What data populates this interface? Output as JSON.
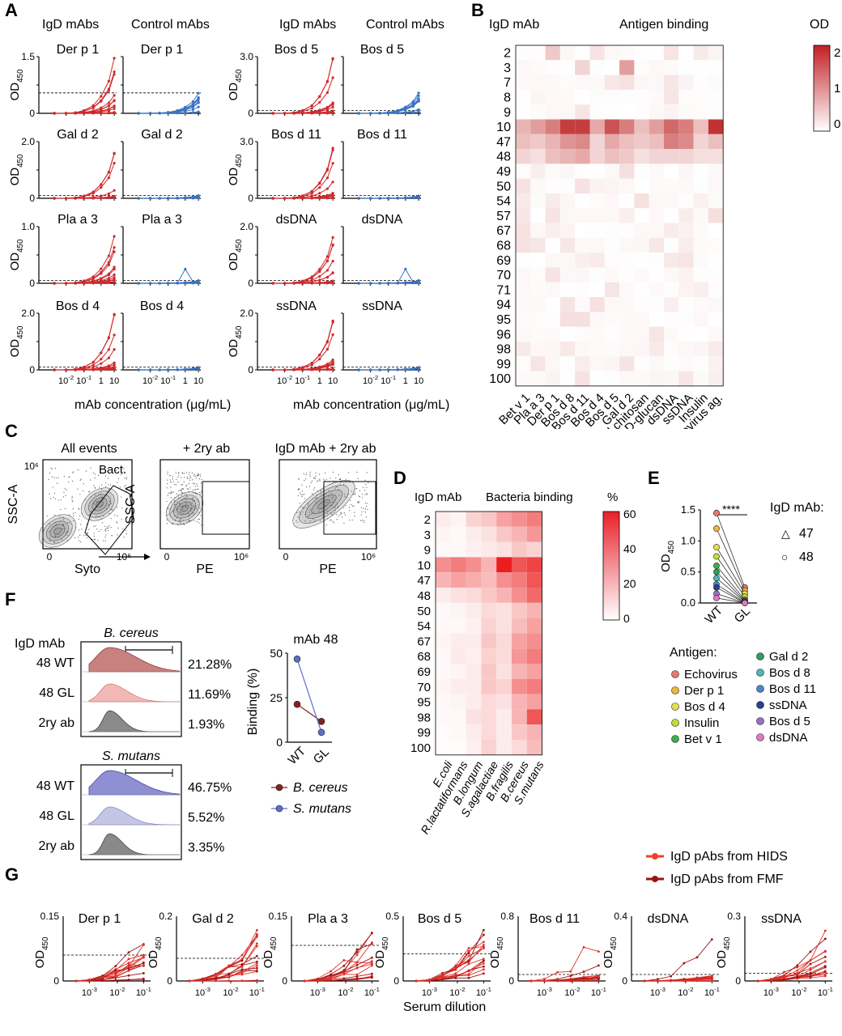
{
  "panels": {
    "A": {
      "label": "A",
      "col_headers": [
        "IgD mAbs",
        "Control mAbs",
        "IgD mAbs",
        "Control mAbs"
      ],
      "xlabel": "mAb concentration (μg/mL)",
      "ylabel_main": "OD",
      "ylabel_sub": "450",
      "xticks": [
        "10-2",
        "10-1",
        "1",
        "10"
      ],
      "rows_left": [
        {
          "title": "Der p 1",
          "ymax": "1.5",
          "ymin": "0"
        },
        {
          "title": "Gal d 2",
          "ymax": "2.0",
          "ymin": "0"
        },
        {
          "title": "Pla a 3",
          "ymax": "1.0",
          "ymin": "0"
        },
        {
          "title": "Bos d 4",
          "ymax": "2.0",
          "ymin": "0"
        }
      ],
      "rows_right": [
        {
          "title": "Bos d 5",
          "ymax": "3.0",
          "ymin": "0"
        },
        {
          "title": "Bos d 11",
          "ymax": "3.0",
          "ymin": "0"
        },
        {
          "title": "dsDNA",
          "ymax": "2.0",
          "ymin": "0"
        },
        {
          "title": "ssDNA",
          "ymax": "2.0",
          "ymin": "0"
        }
      ]
    },
    "B": {
      "label": "B",
      "row_header": "IgD mAb",
      "title": "Antigen binding",
      "scale_title": "OD",
      "scale_ticks": [
        "2",
        "1",
        "0"
      ],
      "rows": [
        "2",
        "3",
        "7",
        "8",
        "9",
        "10",
        "47",
        "48",
        "49",
        "50",
        "54",
        "57",
        "67",
        "68",
        "69",
        "70",
        "71",
        "94",
        "95",
        "96",
        "98",
        "99",
        "100"
      ],
      "cols": [
        "Bet v 1",
        "Pla a 3",
        "Der p 1",
        "Bos d 8",
        "Bos d 11",
        "Bos d 4",
        "Bos d 5",
        "Gal d 2",
        "Fungal chitosan",
        "β-D-glucan",
        "dsDNA",
        "ssDNA",
        "Insulin",
        "Echovirus ag."
      ]
    },
    "C": {
      "label": "C",
      "plots": [
        {
          "title": "All events",
          "ylabel": "SSC-A",
          "xlabel": "Syto",
          "gate": "Bact."
        },
        {
          "title": "+ 2ry ab",
          "ylabel": "SSC-A",
          "xlabel": "PE"
        },
        {
          "title": "IgD mAb + 2ry ab",
          "xlabel": "PE"
        }
      ],
      "tick_max": "10⁶",
      "tick_zero": "0"
    },
    "D": {
      "label": "D",
      "row_header": "IgD mAb",
      "title": "Bacteria binding",
      "scale_title": "%",
      "scale_ticks": [
        "60",
        "40",
        "20",
        "0"
      ],
      "rows": [
        "2",
        "3",
        "9",
        "10",
        "47",
        "48",
        "50",
        "54",
        "67",
        "68",
        "69",
        "70",
        "95",
        "98",
        "99",
        "100"
      ],
      "cols": [
        "E.coli",
        "R.lactatiformans",
        "B.longum",
        "S.agalactiae",
        "B.fragilis",
        "B.cereus",
        "S.mutans"
      ]
    },
    "E": {
      "label": "E",
      "ylabel_main": "OD",
      "ylabel_sub": "450",
      "yticks": [
        "1.5",
        "1.0",
        "0.5",
        "0.0"
      ],
      "xticks": [
        "WT",
        "GL"
      ],
      "significance": "****",
      "legend_title": "IgD mAb:",
      "legend_shapes": [
        {
          "symbol": "△",
          "label": "47"
        },
        {
          "symbol": "○",
          "label": "48"
        }
      ],
      "antigen_title": "Antigen:",
      "antigens_left": [
        {
          "name": "Echovirus",
          "color": "#e8786a"
        },
        {
          "name": "Der p 1",
          "color": "#f2b43c"
        },
        {
          "name": "Bos d 4",
          "color": "#e8e04a"
        },
        {
          "name": "Insulin",
          "color": "#c9d93a"
        },
        {
          "name": "Bet v 1",
          "color": "#3cae4a"
        }
      ],
      "antigens_right": [
        {
          "name": "Gal d 2",
          "color": "#2f9e5a"
        },
        {
          "name": "Bos d 8",
          "color": "#4fb7b0"
        },
        {
          "name": "Bos d 11",
          "color": "#4a86c8"
        },
        {
          "name": "ssDNA",
          "color": "#2a3f8f"
        },
        {
          "name": "Bos d 5",
          "color": "#9a6fc4"
        },
        {
          "name": "dsDNA",
          "color": "#e07ac0"
        }
      ]
    },
    "F": {
      "label": "F",
      "row_header": "IgD mAb",
      "hist1": {
        "title": "B. cereus",
        "rows": [
          {
            "name": "48 WT",
            "pct": "21.28%"
          },
          {
            "name": "48 GL",
            "pct": "11.69%"
          },
          {
            "name": "2ry ab",
            "pct": "1.93%"
          }
        ]
      },
      "hist2": {
        "title": "S. mutans",
        "rows": [
          {
            "name": "48 WT",
            "pct": "46.75%"
          },
          {
            "name": "48 GL",
            "pct": "5.52%"
          },
          {
            "name": "2ry ab",
            "pct": "3.35%"
          }
        ]
      },
      "line_title": "mAb 48",
      "line_ylabel": "Binding (%)",
      "line_yticks": [
        "50",
        "25",
        "0"
      ],
      "line_xticks": [
        "WT",
        "GL"
      ],
      "line_legend": [
        {
          "name": "B. cereus",
          "color": "#8b1e1e"
        },
        {
          "name": "S. mutans",
          "color": "#5b6fc8"
        }
      ]
    },
    "G": {
      "label": "G",
      "legend": [
        {
          "name": "IgD pAbs from HIDS",
          "color": "#f0402a"
        },
        {
          "name": "IgD pAbs from FMF",
          "color": "#9b1414"
        }
      ],
      "xlabel": "Serum dilution",
      "ylabel_main": "OD",
      "ylabel_sub": "450",
      "xticks": [
        "10-3",
        "10-2",
        "10-1"
      ],
      "plots": [
        {
          "title": "Der p 1",
          "ymax": "0.15"
        },
        {
          "title": "Gal d 2",
          "ymax": "0.2"
        },
        {
          "title": "Pla a 3",
          "ymax": "0.15"
        },
        {
          "title": "Bos d 5",
          "ymax": "0.5"
        },
        {
          "title": "Bos d 11",
          "ymax": "0.8"
        },
        {
          "title": "dsDNA",
          "ymax": "0.4"
        },
        {
          "title": "ssDNA",
          "ymax": "0.3"
        }
      ]
    }
  }
}
